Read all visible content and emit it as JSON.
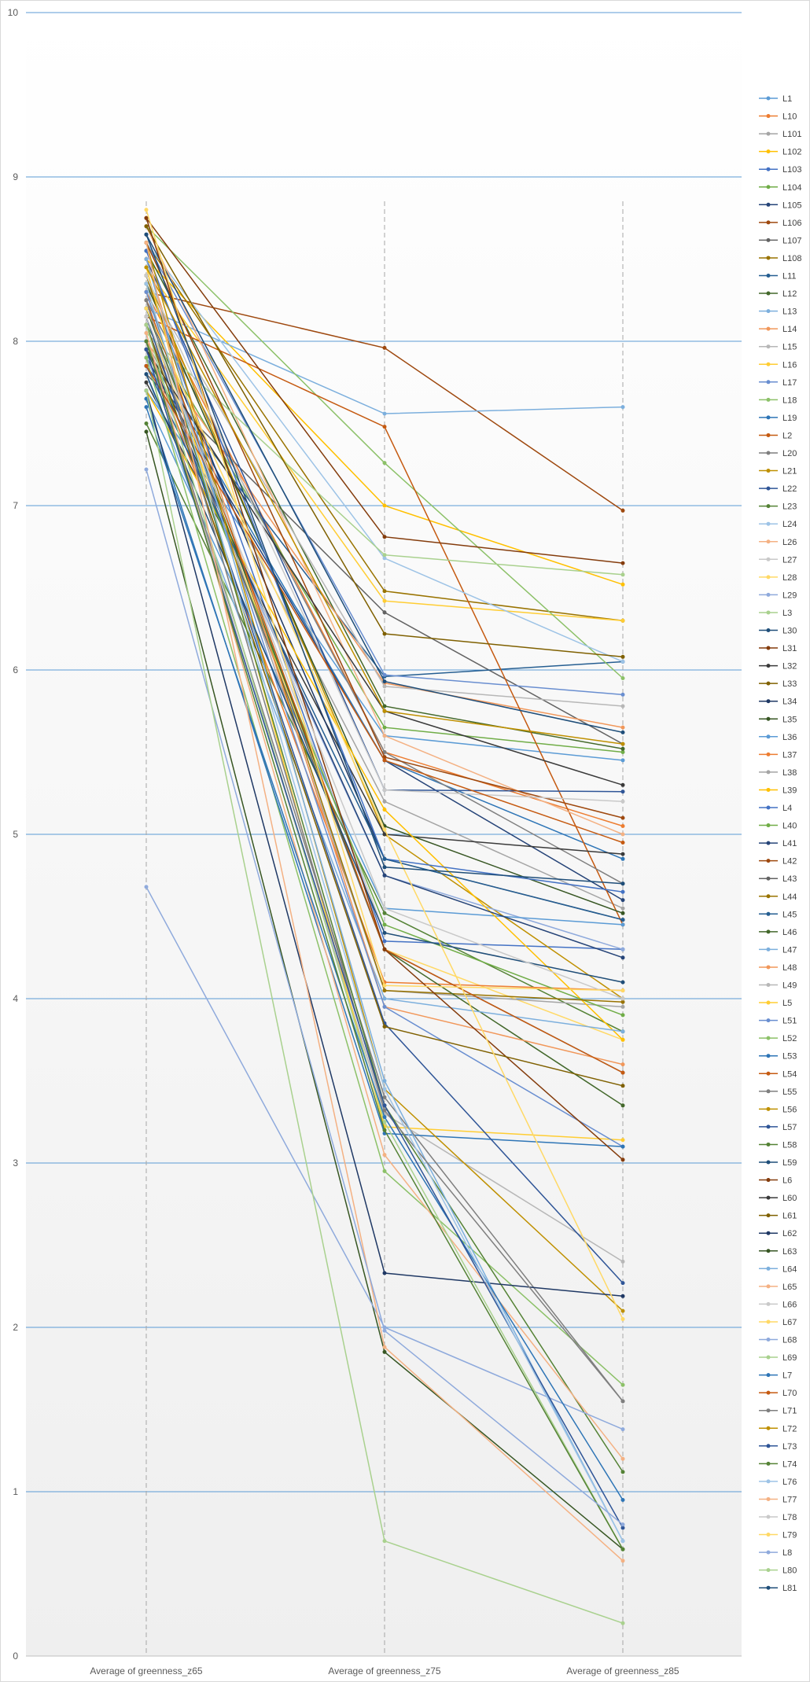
{
  "chart_data": {
    "type": "line",
    "title": "",
    "xlabel": "",
    "ylabel": "",
    "categories": [
      "Average of greenness_z65",
      "Average of greenness_z75",
      "Average of greenness_z85"
    ],
    "ylim": [
      0,
      10
    ],
    "yticks": [
      0,
      1,
      2,
      3,
      4,
      5,
      6,
      7,
      8,
      9,
      10
    ],
    "grid": true,
    "legend_position": "right",
    "series": [
      {
        "name": "L1",
        "color": "#5b9bd5",
        "values": [
          7.7,
          5.6,
          5.45
        ]
      },
      {
        "name": "L10",
        "color": "#ed7d31",
        "values": [
          8.3,
          5.5,
          5.05
        ]
      },
      {
        "name": "L101",
        "color": "#a5a5a5",
        "values": [
          8.0,
          5.2,
          4.55
        ]
      },
      {
        "name": "L102",
        "color": "#ffc000",
        "values": [
          8.5,
          7.0,
          6.52
        ]
      },
      {
        "name": "L103",
        "color": "#4472c4",
        "values": [
          8.4,
          4.35,
          4.3
        ]
      },
      {
        "name": "L104",
        "color": "#70ad47",
        "values": [
          8.1,
          5.65,
          5.5
        ]
      },
      {
        "name": "L105",
        "color": "#264478",
        "values": [
          7.9,
          5.45,
          4.6
        ]
      },
      {
        "name": "L106",
        "color": "#9e480e",
        "values": [
          8.3,
          7.96,
          6.97
        ]
      },
      {
        "name": "L107",
        "color": "#636363",
        "values": [
          7.8,
          6.35,
          5.55
        ]
      },
      {
        "name": "L108",
        "color": "#997300",
        "values": [
          8.6,
          6.48,
          6.3
        ]
      },
      {
        "name": "L11",
        "color": "#255e91",
        "values": [
          7.85,
          5.96,
          6.05
        ]
      },
      {
        "name": "L12",
        "color": "#43682b",
        "values": [
          8.55,
          5.78,
          5.52
        ]
      },
      {
        "name": "L13",
        "color": "#7cafdd",
        "values": [
          8.2,
          7.56,
          7.6
        ]
      },
      {
        "name": "L14",
        "color": "#f1975a",
        "values": [
          8.0,
          5.92,
          5.65
        ]
      },
      {
        "name": "L15",
        "color": "#b7b7b7",
        "values": [
          8.35,
          5.9,
          5.78
        ]
      },
      {
        "name": "L16",
        "color": "#ffcd33",
        "values": [
          8.45,
          6.42,
          6.3
        ]
      },
      {
        "name": "L17",
        "color": "#698ed0",
        "values": [
          8.6,
          5.97,
          5.85
        ]
      },
      {
        "name": "L18",
        "color": "#8cc168",
        "values": [
          8.7,
          7.26,
          5.95
        ]
      },
      {
        "name": "L19",
        "color": "#2e75b6",
        "values": [
          7.95,
          5.45,
          4.85
        ]
      },
      {
        "name": "L2",
        "color": "#c55a11",
        "values": [
          8.15,
          7.48,
          4.45
        ]
      },
      {
        "name": "L20",
        "color": "#7f7f7f",
        "values": [
          8.25,
          5.5,
          4.7
        ]
      },
      {
        "name": "L21",
        "color": "#bf9000",
        "values": [
          8.4,
          5.0,
          4.0
        ]
      },
      {
        "name": "L22",
        "color": "#2f5597",
        "values": [
          8.5,
          5.27,
          5.26
        ]
      },
      {
        "name": "L23",
        "color": "#548235",
        "values": [
          7.5,
          4.52,
          3.8
        ]
      },
      {
        "name": "L24",
        "color": "#9dc3e6",
        "values": [
          8.6,
          6.68,
          6.05
        ]
      },
      {
        "name": "L26",
        "color": "#f4b183",
        "values": [
          8.7,
          5.6,
          5.0
        ]
      },
      {
        "name": "L27",
        "color": "#c9c9c9",
        "values": [
          8.2,
          4.4,
          4.1
        ]
      },
      {
        "name": "L28",
        "color": "#ffd966",
        "values": [
          8.15,
          4.3,
          3.75
        ]
      },
      {
        "name": "L29",
        "color": "#8faadc",
        "values": [
          7.9,
          4.75,
          4.3
        ]
      },
      {
        "name": "L3",
        "color": "#a9d18e",
        "values": [
          8.05,
          6.7,
          6.58
        ]
      },
      {
        "name": "L30",
        "color": "#1f4e79",
        "values": [
          8.65,
          5.93,
          5.62
        ]
      },
      {
        "name": "L31",
        "color": "#843c0c",
        "values": [
          8.75,
          6.81,
          6.65
        ]
      },
      {
        "name": "L32",
        "color": "#3a3a3a",
        "values": [
          7.75,
          5.0,
          4.88
        ]
      },
      {
        "name": "L33",
        "color": "#7f6000",
        "values": [
          8.7,
          6.22,
          6.08
        ]
      },
      {
        "name": "L34",
        "color": "#1f3864",
        "values": [
          8.2,
          4.85,
          4.48
        ]
      },
      {
        "name": "L35",
        "color": "#375623",
        "values": [
          8.35,
          5.05,
          4.52
        ]
      },
      {
        "name": "L36",
        "color": "#5b9bd5",
        "values": [
          7.65,
          4.55,
          4.45
        ]
      },
      {
        "name": "L37",
        "color": "#ed7d31",
        "values": [
          8.0,
          4.1,
          4.05
        ]
      },
      {
        "name": "L38",
        "color": "#a5a5a5",
        "values": [
          8.3,
          4.05,
          3.95
        ]
      },
      {
        "name": "L39",
        "color": "#ffc000",
        "values": [
          7.7,
          5.15,
          3.75
        ]
      },
      {
        "name": "L4",
        "color": "#4472c4",
        "values": [
          8.55,
          4.85,
          4.65
        ]
      },
      {
        "name": "L40",
        "color": "#70ad47",
        "values": [
          8.0,
          4.45,
          3.9
        ]
      },
      {
        "name": "L41",
        "color": "#264478",
        "values": [
          7.95,
          4.75,
          4.25
        ]
      },
      {
        "name": "L42",
        "color": "#9e480e",
        "values": [
          8.6,
          5.47,
          5.1
        ]
      },
      {
        "name": "L43",
        "color": "#636363",
        "values": [
          8.1,
          4.3,
          3.55
        ]
      },
      {
        "name": "L44",
        "color": "#997300",
        "values": [
          8.4,
          4.05,
          3.98
        ]
      },
      {
        "name": "L45",
        "color": "#255e91",
        "values": [
          7.85,
          4.85,
          4.48
        ]
      },
      {
        "name": "L46",
        "color": "#43682b",
        "values": [
          8.2,
          4.3,
          3.35
        ]
      },
      {
        "name": "L47",
        "color": "#7cafdd",
        "values": [
          7.8,
          4.0,
          3.8
        ]
      },
      {
        "name": "L48",
        "color": "#f1975a",
        "values": [
          8.5,
          3.95,
          3.6
        ]
      },
      {
        "name": "L49",
        "color": "#b7b7b7",
        "values": [
          8.0,
          3.3,
          2.4
        ]
      },
      {
        "name": "L5",
        "color": "#ffcd33",
        "values": [
          8.45,
          3.22,
          3.14
        ]
      },
      {
        "name": "L51",
        "color": "#698ed0",
        "values": [
          8.3,
          3.95,
          3.1
        ]
      },
      {
        "name": "L52",
        "color": "#8cc168",
        "values": [
          7.9,
          2.95,
          1.65
        ]
      },
      {
        "name": "L53",
        "color": "#2e75b6",
        "values": [
          7.65,
          3.18,
          3.1
        ]
      },
      {
        "name": "L54",
        "color": "#c55a11",
        "values": [
          8.25,
          4.3,
          3.55
        ]
      },
      {
        "name": "L55",
        "color": "#7f7f7f",
        "values": [
          8.0,
          3.4,
          1.55
        ]
      },
      {
        "name": "L56",
        "color": "#bf9000",
        "values": [
          8.6,
          3.45,
          2.1
        ]
      },
      {
        "name": "L57",
        "color": "#2f5597",
        "values": [
          8.15,
          3.85,
          2.27
        ]
      },
      {
        "name": "L58",
        "color": "#548235",
        "values": [
          8.35,
          3.35,
          1.12
        ]
      },
      {
        "name": "L59",
        "color": "#1f4e79",
        "values": [
          7.8,
          4.4,
          4.1
        ]
      },
      {
        "name": "L6",
        "color": "#843c0c",
        "values": [
          8.75,
          4.3,
          3.02
        ]
      },
      {
        "name": "L60",
        "color": "#3a3a3a",
        "values": [
          7.95,
          5.75,
          5.3
        ]
      },
      {
        "name": "L61",
        "color": "#7f6000",
        "values": [
          8.1,
          3.83,
          3.47
        ]
      },
      {
        "name": "L62",
        "color": "#1f3864",
        "values": [
          7.7,
          2.33,
          2.19
        ]
      },
      {
        "name": "L63",
        "color": "#375623",
        "values": [
          7.45,
          1.85,
          0.65
        ]
      },
      {
        "name": "L64",
        "color": "#7cafdd",
        "values": [
          8.5,
          3.5,
          0.7
        ]
      },
      {
        "name": "L65",
        "color": "#f4b183",
        "values": [
          8.05,
          3.05,
          1.2
        ]
      },
      {
        "name": "L66",
        "color": "#c9c9c9",
        "values": [
          8.4,
          5.27,
          5.2
        ]
      },
      {
        "name": "L67",
        "color": "#ffd966",
        "values": [
          8.2,
          5.03,
          2.05
        ]
      },
      {
        "name": "L68",
        "color": "#8faadc",
        "values": [
          4.68,
          2.0,
          1.38
        ]
      },
      {
        "name": "L69",
        "color": "#a9d18e",
        "values": [
          8.1,
          3.25,
          0.65
        ]
      },
      {
        "name": "L7",
        "color": "#2e75b6",
        "values": [
          7.6,
          3.28,
          0.95
        ]
      },
      {
        "name": "L70",
        "color": "#c55a11",
        "values": [
          7.85,
          5.45,
          4.95
        ]
      },
      {
        "name": "L71",
        "color": "#7f7f7f",
        "values": [
          8.25,
          3.32,
          1.55
        ]
      },
      {
        "name": "L72",
        "color": "#bf9000",
        "values": [
          8.45,
          5.75,
          5.55
        ]
      },
      {
        "name": "L73",
        "color": "#2f5597",
        "values": [
          7.95,
          3.35,
          0.78
        ]
      },
      {
        "name": "L74",
        "color": "#548235",
        "values": [
          8.0,
          3.2,
          0.65
        ]
      },
      {
        "name": "L76",
        "color": "#9dc3e6",
        "values": [
          8.35,
          3.45,
          0.7
        ]
      },
      {
        "name": "L77",
        "color": "#f4b183",
        "values": [
          8.6,
          1.88,
          0.58
        ]
      },
      {
        "name": "L78",
        "color": "#c9c9c9",
        "values": [
          8.15,
          4.55,
          4.0
        ]
      },
      {
        "name": "L79",
        "color": "#ffd966",
        "values": [
          8.8,
          4.08,
          4.05
        ]
      },
      {
        "name": "L8",
        "color": "#8faadc",
        "values": [
          7.22,
          1.98,
          0.8
        ]
      },
      {
        "name": "L80",
        "color": "#a9d18e",
        "values": [
          7.7,
          0.7,
          0.2
        ]
      },
      {
        "name": "L81",
        "color": "#1f4e79",
        "values": [
          8.65,
          4.8,
          4.7
        ]
      }
    ]
  }
}
